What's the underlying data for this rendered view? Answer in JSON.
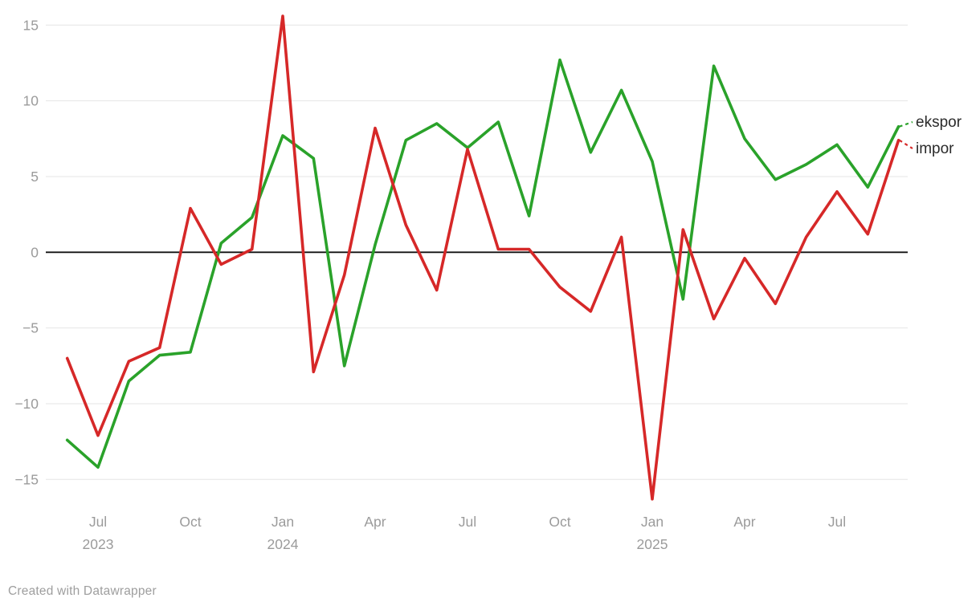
{
  "chart_data": {
    "type": "line",
    "title": "",
    "x": [
      "Jun 2023",
      "Jul 2023",
      "Aug 2023",
      "Sep 2023",
      "Oct 2023",
      "Nov 2023",
      "Dec 2023",
      "Jan 2024",
      "Feb 2024",
      "Mar 2024",
      "Apr 2024",
      "May 2024",
      "Jun 2024",
      "Jul 2024",
      "Aug 2024",
      "Sep 2024",
      "Oct 2024",
      "Nov 2024",
      "Dec 2024",
      "Jan 2025",
      "Feb 2025",
      "Mar 2025",
      "Apr 2025",
      "May 2025",
      "Jun 2025",
      "Jul 2025",
      "Aug 2025",
      "Sep 2025"
    ],
    "series": [
      {
        "name": "ekspor",
        "color": "#2aa22a",
        "values": [
          -12.4,
          -14.2,
          -8.5,
          -6.8,
          -6.6,
          0.6,
          2.3,
          7.7,
          6.2,
          -7.5,
          0.5,
          7.4,
          8.5,
          6.9,
          8.6,
          2.4,
          12.7,
          6.6,
          10.7,
          6.0,
          -3.1,
          12.3,
          7.5,
          4.8,
          5.8,
          7.1,
          4.3,
          8.3
        ]
      },
      {
        "name": "impor",
        "color": "#d62828",
        "values": [
          -7.0,
          -12.1,
          -7.2,
          -6.3,
          2.9,
          -0.8,
          0.2,
          15.6,
          -7.9,
          -1.5,
          8.2,
          1.8,
          -2.5,
          6.8,
          0.2,
          0.2,
          -2.3,
          -3.9,
          1.0,
          -16.3,
          1.5,
          -4.4,
          -0.4,
          -3.4,
          1.0,
          4.0,
          1.2,
          7.4
        ]
      }
    ],
    "ylim": [
      -17,
      16.5
    ],
    "yticks": [
      {
        "value": 15,
        "label": "15"
      },
      {
        "value": 10,
        "label": "10"
      },
      {
        "value": 5,
        "label": "5"
      },
      {
        "value": 0,
        "label": "0"
      },
      {
        "value": -5,
        "label": "−5"
      },
      {
        "value": -10,
        "label": "−10"
      },
      {
        "value": -15,
        "label": "−15"
      }
    ],
    "xticks": [
      {
        "index": 1,
        "label": "Jul",
        "year": "2023"
      },
      {
        "index": 4,
        "label": "Oct",
        "year": ""
      },
      {
        "index": 7,
        "label": "Jan",
        "year": "2024"
      },
      {
        "index": 10,
        "label": "Apr",
        "year": ""
      },
      {
        "index": 13,
        "label": "Jul",
        "year": ""
      },
      {
        "index": 16,
        "label": "Oct",
        "year": ""
      },
      {
        "index": 19,
        "label": "Jan",
        "year": "2025"
      },
      {
        "index": 22,
        "label": "Apr",
        "year": ""
      },
      {
        "index": 25,
        "label": "Jul",
        "year": ""
      }
    ],
    "grid": true,
    "legend_position": "end-of-line-labels",
    "end_labels": [
      {
        "series": "ekspor",
        "text": "ekspor"
      },
      {
        "series": "impor",
        "text": "impor"
      }
    ]
  },
  "colors": {
    "grid": "#e6e6e6",
    "zero_line": "#121212",
    "tick_text": "#9b9b9b",
    "end_label_text": "#2b2b2b",
    "background": "#ffffff"
  },
  "footer": {
    "credit": "Created with Datawrapper"
  }
}
